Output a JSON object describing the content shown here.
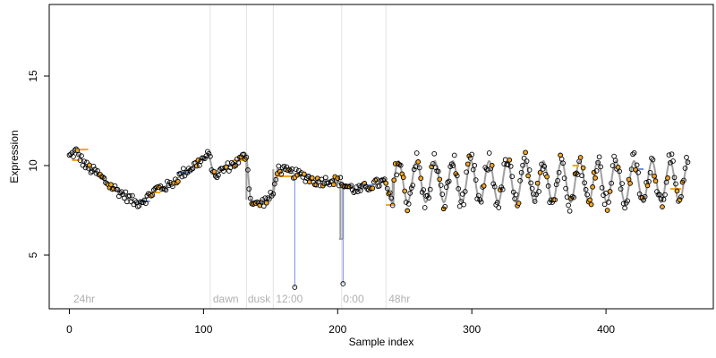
{
  "chart_data": {
    "type": "scatter",
    "title": "",
    "xlabel": "Sample index",
    "ylabel": "Expression",
    "xlim": [
      -15,
      480
    ],
    "ylim": [
      2,
      19
    ],
    "x_ticks": [
      0,
      100,
      200,
      300,
      400
    ],
    "y_ticks": [
      5,
      10,
      15
    ],
    "grid": false,
    "legend": "none",
    "colors": {
      "points_stroke": "#000000",
      "highlight_fill": "#f5a623",
      "segment_orange": "#f5a623",
      "segment_blue": "#6f8fd6",
      "fit_gray": "#a0a0a0",
      "divider": "#e2e2e2",
      "annotation_text": "#b0b0b0"
    },
    "dividers": [
      105,
      132,
      152,
      203,
      236
    ],
    "annotations": [
      {
        "x": 3,
        "text": "24hr"
      },
      {
        "x": 107,
        "text": "dawn"
      },
      {
        "x": 133,
        "text": "dusk"
      },
      {
        "x": 154,
        "text": "12:00"
      },
      {
        "x": 204,
        "text": "0:00"
      },
      {
        "x": 238,
        "text": "48hr"
      }
    ],
    "outliers": [
      {
        "x": 168,
        "y": 3.2
      },
      {
        "x": 204,
        "y": 3.4
      }
    ],
    "trend_knots": [
      [
        0,
        10.5
      ],
      [
        5,
        10.8
      ],
      [
        12,
        10.0
      ],
      [
        20,
        9.6
      ],
      [
        30,
        8.9
      ],
      [
        40,
        8.4
      ],
      [
        50,
        7.9
      ],
      [
        58,
        8.2
      ],
      [
        65,
        8.7
      ],
      [
        75,
        8.9
      ],
      [
        85,
        9.6
      ],
      [
        95,
        10.1
      ],
      [
        104,
        10.6
      ],
      [
        108,
        9.4
      ],
      [
        115,
        9.8
      ],
      [
        125,
        10.2
      ],
      [
        132,
        10.6
      ],
      [
        135,
        8.1
      ],
      [
        140,
        7.8
      ],
      [
        148,
        8.1
      ],
      [
        152,
        8.4
      ],
      [
        155,
        9.8
      ],
      [
        165,
        9.6
      ],
      [
        175,
        9.4
      ],
      [
        185,
        9.1
      ],
      [
        195,
        9.2
      ],
      [
        202,
        9.1
      ],
      [
        205,
        8.9
      ],
      [
        215,
        8.6
      ],
      [
        225,
        8.9
      ],
      [
        235,
        9.1
      ],
      [
        241,
        7.8
      ]
    ],
    "oscillation": {
      "x_start": 242,
      "x_end": 462,
      "center": 9.1,
      "amplitude": 1.15,
      "period": 13.5
    },
    "step_segments": [
      {
        "x0": 2,
        "x1": 8,
        "y": 10.3,
        "color": "orange"
      },
      {
        "x0": 8,
        "x1": 14,
        "y": 10.9,
        "color": "orange"
      },
      {
        "x0": 52,
        "x1": 60,
        "y": 8.0,
        "color": "blue"
      },
      {
        "x0": 60,
        "x1": 68,
        "y": 8.5,
        "color": "orange"
      },
      {
        "x0": 80,
        "x1": 90,
        "y": 9.6,
        "color": "blue"
      },
      {
        "x0": 122,
        "x1": 132,
        "y": 10.3,
        "color": "orange"
      },
      {
        "x0": 155,
        "x1": 168,
        "y": 9.4,
        "color": "orange"
      },
      {
        "x0": 168,
        "x1": 180,
        "y": 9.5,
        "color": "blue"
      },
      {
        "x0": 201,
        "x1": 204,
        "y": 5.9,
        "color": "gray"
      },
      {
        "x0": 216,
        "x1": 226,
        "y": 8.9,
        "color": "blue"
      },
      {
        "x0": 236,
        "x1": 242,
        "y": 7.8,
        "color": "orange"
      },
      {
        "x0": 375,
        "x1": 380,
        "y": 10.0,
        "color": "orange"
      },
      {
        "x0": 420,
        "x1": 428,
        "y": 9.8,
        "color": "blue"
      },
      {
        "x0": 448,
        "x1": 456,
        "y": 8.7,
        "color": "orange"
      }
    ],
    "n_points": 462
  }
}
